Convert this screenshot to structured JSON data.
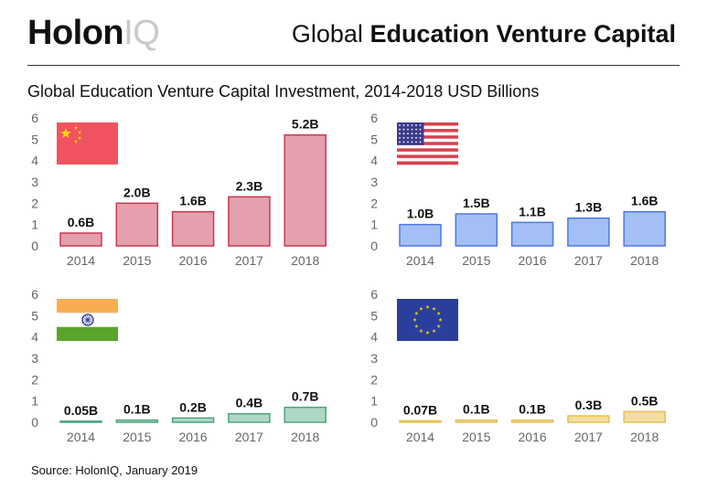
{
  "header": {
    "logo_bold": "Holon",
    "logo_light": "IQ",
    "title_regular": "Global ",
    "title_bold": "Education Venture Capital"
  },
  "subtitle": "Global Education Venture Capital Investment, 2014-2018 USD Billions",
  "source": "Source: HolonIQ, January 2019",
  "chart_data": [
    {
      "type": "bar",
      "flag": "china-flag-icon",
      "categories": [
        "2014",
        "2015",
        "2016",
        "2017",
        "2018"
      ],
      "values": [
        0.6,
        2.0,
        1.6,
        2.3,
        5.2
      ],
      "data_labels": [
        "0.6B",
        "2.0B",
        "1.6B",
        "2.3B",
        "5.2B"
      ],
      "yticks": [
        "0",
        "1",
        "2",
        "3",
        "4",
        "5",
        "6"
      ],
      "ylim": [
        0,
        6
      ],
      "grid": false,
      "fill": "#e5a0ad",
      "stroke": "#c8394f"
    },
    {
      "type": "bar",
      "flag": "usa-flag-icon",
      "categories": [
        "2014",
        "2015",
        "2016",
        "2017",
        "2018"
      ],
      "values": [
        1.0,
        1.5,
        1.1,
        1.3,
        1.6
      ],
      "data_labels": [
        "1.0B",
        "1.5B",
        "1.1B",
        "1.3B",
        "1.6B"
      ],
      "yticks": [
        "0",
        "1",
        "2",
        "3",
        "4",
        "5",
        "6"
      ],
      "ylim": [
        0,
        6
      ],
      "grid": false,
      "fill": "#a3bff5",
      "stroke": "#4d79e0"
    },
    {
      "type": "bar",
      "flag": "india-flag-icon",
      "categories": [
        "2014",
        "2015",
        "2016",
        "2017",
        "2018"
      ],
      "values": [
        0.05,
        0.1,
        0.2,
        0.4,
        0.7
      ],
      "data_labels": [
        "0.05B",
        "0.1B",
        "0.2B",
        "0.4B",
        "0.7B"
      ],
      "yticks": [
        "0",
        "1",
        "2",
        "3",
        "4",
        "5",
        "6"
      ],
      "ylim": [
        0,
        6
      ],
      "grid": false,
      "fill": "#aed8c4",
      "stroke": "#4fa37e"
    },
    {
      "type": "bar",
      "flag": "eu-flag-icon",
      "categories": [
        "2014",
        "2015",
        "2016",
        "2017",
        "2018"
      ],
      "values": [
        0.07,
        0.1,
        0.1,
        0.3,
        0.5
      ],
      "data_labels": [
        "0.07B",
        "0.1B",
        "0.1B",
        "0.3B",
        "0.5B"
      ],
      "yticks": [
        "0",
        "1",
        "2",
        "3",
        "4",
        "5",
        "6"
      ],
      "ylim": [
        0,
        6
      ],
      "grid": false,
      "fill": "#f3dea0",
      "stroke": "#e4c057"
    }
  ]
}
